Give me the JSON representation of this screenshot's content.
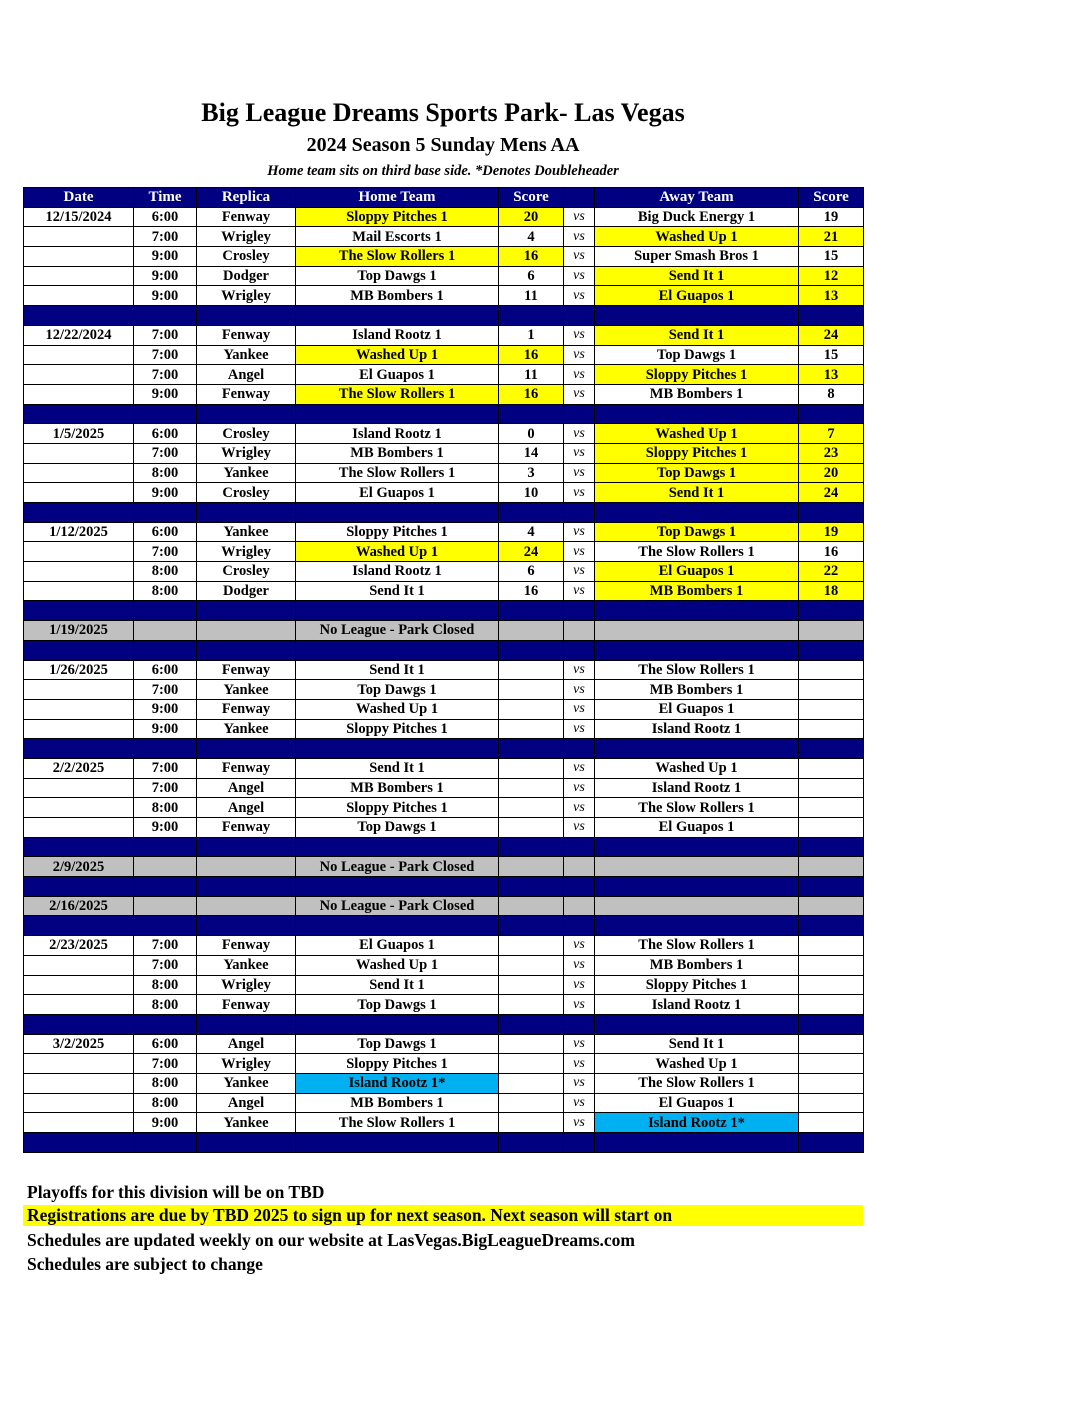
{
  "title": "Big League Dreams Sports Park- Las Vegas",
  "subtitle": "2024 Season 5 Sunday Mens AA",
  "note": "Home team sits on third base side.  *Denotes Doubleheader",
  "colors": {
    "header": "#000080",
    "winner": "#ffff00",
    "doubleheader": "#00b0f0",
    "closed": "#c0c0c0"
  },
  "headers": [
    "Date",
    "Time",
    "Replica",
    "Home Team",
    "Score",
    "",
    "Away Team",
    "Score"
  ],
  "vs": "vs",
  "rows": [
    {
      "type": "game",
      "date": "12/15/2024",
      "time": "6:00",
      "field": "Fenway",
      "home": "Sloppy Pitches 1",
      "hs": "20",
      "away": "Big Duck Energy 1",
      "as": "19",
      "hl": "home"
    },
    {
      "type": "game",
      "date": "",
      "time": "7:00",
      "field": "Wrigley",
      "home": "Mail Escorts 1",
      "hs": "4",
      "away": "Washed Up 1",
      "as": "21",
      "hl": "away"
    },
    {
      "type": "game",
      "date": "",
      "time": "9:00",
      "field": "Crosley",
      "home": "The Slow Rollers 1",
      "hs": "16",
      "away": "Super Smash Bros 1",
      "as": "15",
      "hl": "home"
    },
    {
      "type": "game",
      "date": "",
      "time": "9:00",
      "field": "Dodger",
      "home": "Top Dawgs 1",
      "hs": "6",
      "away": "Send It 1",
      "as": "12",
      "hl": "away"
    },
    {
      "type": "game",
      "date": "",
      "time": "9:00",
      "field": "Wrigley",
      "home": "MB Bombers 1",
      "hs": "11",
      "away": "El Guapos 1",
      "as": "13",
      "hl": "away"
    },
    {
      "type": "sep"
    },
    {
      "type": "game",
      "date": "12/22/2024",
      "time": "7:00",
      "field": "Fenway",
      "home": "Island Rootz 1",
      "hs": "1",
      "away": "Send It 1",
      "as": "24",
      "hl": "away"
    },
    {
      "type": "game",
      "date": "",
      "time": "7:00",
      "field": "Yankee",
      "home": "Washed Up 1",
      "hs": "16",
      "away": "Top Dawgs 1",
      "as": "15",
      "hl": "home"
    },
    {
      "type": "game",
      "date": "",
      "time": "7:00",
      "field": "Angel",
      "home": "El Guapos 1",
      "hs": "11",
      "away": "Sloppy Pitches 1",
      "as": "13",
      "hl": "away"
    },
    {
      "type": "game",
      "date": "",
      "time": "9:00",
      "field": "Fenway",
      "home": "The Slow Rollers 1",
      "hs": "16",
      "away": "MB Bombers 1",
      "as": "8",
      "hl": "home"
    },
    {
      "type": "sep"
    },
    {
      "type": "game",
      "date": "1/5/2025",
      "time": "6:00",
      "field": "Crosley",
      "home": "Island Rootz 1",
      "hs": "0",
      "away": "Washed Up 1",
      "as": "7",
      "hl": "away"
    },
    {
      "type": "game",
      "date": "",
      "time": "7:00",
      "field": "Wrigley",
      "home": "MB Bombers 1",
      "hs": "14",
      "away": "Sloppy Pitches 1",
      "as": "23",
      "hl": "away"
    },
    {
      "type": "game",
      "date": "",
      "time": "8:00",
      "field": "Yankee",
      "home": "The Slow Rollers 1",
      "hs": "3",
      "away": "Top Dawgs 1",
      "as": "20",
      "hl": "away"
    },
    {
      "type": "game",
      "date": "",
      "time": "9:00",
      "field": "Crosley",
      "home": "El Guapos 1",
      "hs": "10",
      "away": "Send It 1",
      "as": "24",
      "hl": "away"
    },
    {
      "type": "sep"
    },
    {
      "type": "game",
      "date": "1/12/2025",
      "time": "6:00",
      "field": "Yankee",
      "home": "Sloppy Pitches 1",
      "hs": "4",
      "away": "Top Dawgs 1",
      "as": "19",
      "hl": "away"
    },
    {
      "type": "game",
      "date": "",
      "time": "7:00",
      "field": "Wrigley",
      "home": "Washed Up 1",
      "hs": "24",
      "away": "The Slow Rollers 1",
      "as": "16",
      "hl": "home"
    },
    {
      "type": "game",
      "date": "",
      "time": "8:00",
      "field": "Crosley",
      "home": "Island Rootz 1",
      "hs": "6",
      "away": "El Guapos 1",
      "as": "22",
      "hl": "away"
    },
    {
      "type": "game",
      "date": "",
      "time": "8:00",
      "field": "Dodger",
      "home": "Send It 1",
      "hs": "16",
      "away": "MB Bombers 1",
      "as": "18",
      "hl": "away"
    },
    {
      "type": "sep"
    },
    {
      "type": "closed",
      "date": "1/19/2025",
      "home": "No League - Park Closed"
    },
    {
      "type": "sep"
    },
    {
      "type": "game",
      "date": "1/26/2025",
      "time": "6:00",
      "field": "Fenway",
      "home": "Send It 1",
      "hs": "",
      "away": "The Slow Rollers 1",
      "as": ""
    },
    {
      "type": "game",
      "date": "",
      "time": "7:00",
      "field": "Yankee",
      "home": "Top Dawgs 1",
      "hs": "",
      "away": "MB Bombers 1",
      "as": ""
    },
    {
      "type": "game",
      "date": "",
      "time": "9:00",
      "field": "Fenway",
      "home": "Washed Up 1",
      "hs": "",
      "away": "El Guapos 1",
      "as": ""
    },
    {
      "type": "game",
      "date": "",
      "time": "9:00",
      "field": "Yankee",
      "home": "Sloppy Pitches 1",
      "hs": "",
      "away": "Island Rootz 1",
      "as": ""
    },
    {
      "type": "sep"
    },
    {
      "type": "game",
      "date": "2/2/2025",
      "time": "7:00",
      "field": "Fenway",
      "home": "Send It 1",
      "hs": "",
      "away": "Washed Up 1",
      "as": ""
    },
    {
      "type": "game",
      "date": "",
      "time": "7:00",
      "field": "Angel",
      "home": "MB Bombers 1",
      "hs": "",
      "away": "Island Rootz 1",
      "as": ""
    },
    {
      "type": "game",
      "date": "",
      "time": "8:00",
      "field": "Angel",
      "home": "Sloppy Pitches 1",
      "hs": "",
      "away": "The Slow Rollers 1",
      "as": ""
    },
    {
      "type": "game",
      "date": "",
      "time": "9:00",
      "field": "Fenway",
      "home": "Top Dawgs 1",
      "hs": "",
      "away": "El Guapos 1",
      "as": ""
    },
    {
      "type": "sep"
    },
    {
      "type": "closed",
      "date": "2/9/2025",
      "home": "No League - Park Closed"
    },
    {
      "type": "sep"
    },
    {
      "type": "closed",
      "date": "2/16/2025",
      "home": "No League - Park Closed"
    },
    {
      "type": "sep"
    },
    {
      "type": "game",
      "date": "2/23/2025",
      "time": "7:00",
      "field": "Fenway",
      "home": "El Guapos 1",
      "hs": "",
      "away": "The Slow Rollers 1",
      "as": ""
    },
    {
      "type": "game",
      "date": "",
      "time": "7:00",
      "field": "Yankee",
      "home": "Washed Up 1",
      "hs": "",
      "away": "MB Bombers 1",
      "as": ""
    },
    {
      "type": "game",
      "date": "",
      "time": "8:00",
      "field": "Wrigley",
      "home": "Send It 1",
      "hs": "",
      "away": "Sloppy Pitches 1",
      "as": ""
    },
    {
      "type": "game",
      "date": "",
      "time": "8:00",
      "field": "Fenway",
      "home": "Top Dawgs 1",
      "hs": "",
      "away": "Island Rootz 1",
      "as": ""
    },
    {
      "type": "sep"
    },
    {
      "type": "game",
      "date": "3/2/2025",
      "time": "6:00",
      "field": "Angel",
      "home": "Top Dawgs 1",
      "hs": "",
      "away": "Send It 1",
      "as": ""
    },
    {
      "type": "game",
      "date": "",
      "time": "7:00",
      "field": "Wrigley",
      "home": "Sloppy Pitches 1",
      "hs": "",
      "away": "Washed Up 1",
      "as": ""
    },
    {
      "type": "game",
      "date": "",
      "time": "8:00",
      "field": "Yankee",
      "home": "Island Rootz 1*",
      "hs": "",
      "away": "The Slow Rollers 1",
      "as": "",
      "dh": "home"
    },
    {
      "type": "game",
      "date": "",
      "time": "8:00",
      "field": "Angel",
      "home": "MB Bombers 1",
      "hs": "",
      "away": "El Guapos 1",
      "as": ""
    },
    {
      "type": "game",
      "date": "",
      "time": "9:00",
      "field": "Yankee",
      "home": "The Slow Rollers 1",
      "hs": "",
      "away": "Island Rootz 1*",
      "as": "",
      "dh": "away"
    },
    {
      "type": "sep"
    }
  ],
  "footer": [
    "Playoffs for this division will be on TBD",
    "Registrations are due by TBD 2025 to sign up for next season. Next season will start on",
    "Schedules are updated weekly on our website at LasVegas.BigLeagueDreams.com",
    "Schedules are subject to change"
  ]
}
